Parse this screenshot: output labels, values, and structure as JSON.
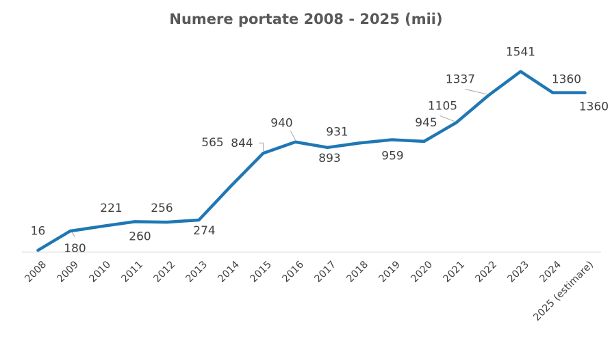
{
  "chart_data": {
    "type": "line",
    "title": "Numere portate 2008 - 2025 (mii)",
    "xlabel": "",
    "ylabel": "",
    "categories": [
      "2008",
      "2009",
      "2010",
      "2011",
      "2012",
      "2013",
      "2014",
      "2015",
      "2016",
      "2017",
      "2018",
      "2019",
      "2020",
      "2021",
      "2022",
      "2023",
      "2024",
      "2025 (estimare)"
    ],
    "series": [
      {
        "name": "Numere portate",
        "color": "#1F77B4",
        "values": [
          16,
          180,
          221,
          260,
          256,
          274,
          565,
          844,
          940,
          893,
          931,
          959,
          945,
          1105,
          1337,
          1541,
          1360,
          1360
        ],
        "labels": [
          "16",
          "180",
          "221",
          "260",
          "256",
          "274",
          "565",
          "844",
          "940",
          "893",
          "931",
          "959",
          "945",
          "1105",
          "1337",
          "1541",
          "1360",
          "1360"
        ]
      }
    ],
    "ylim": [
      0,
      1600
    ],
    "grid": false,
    "legend": "none"
  }
}
